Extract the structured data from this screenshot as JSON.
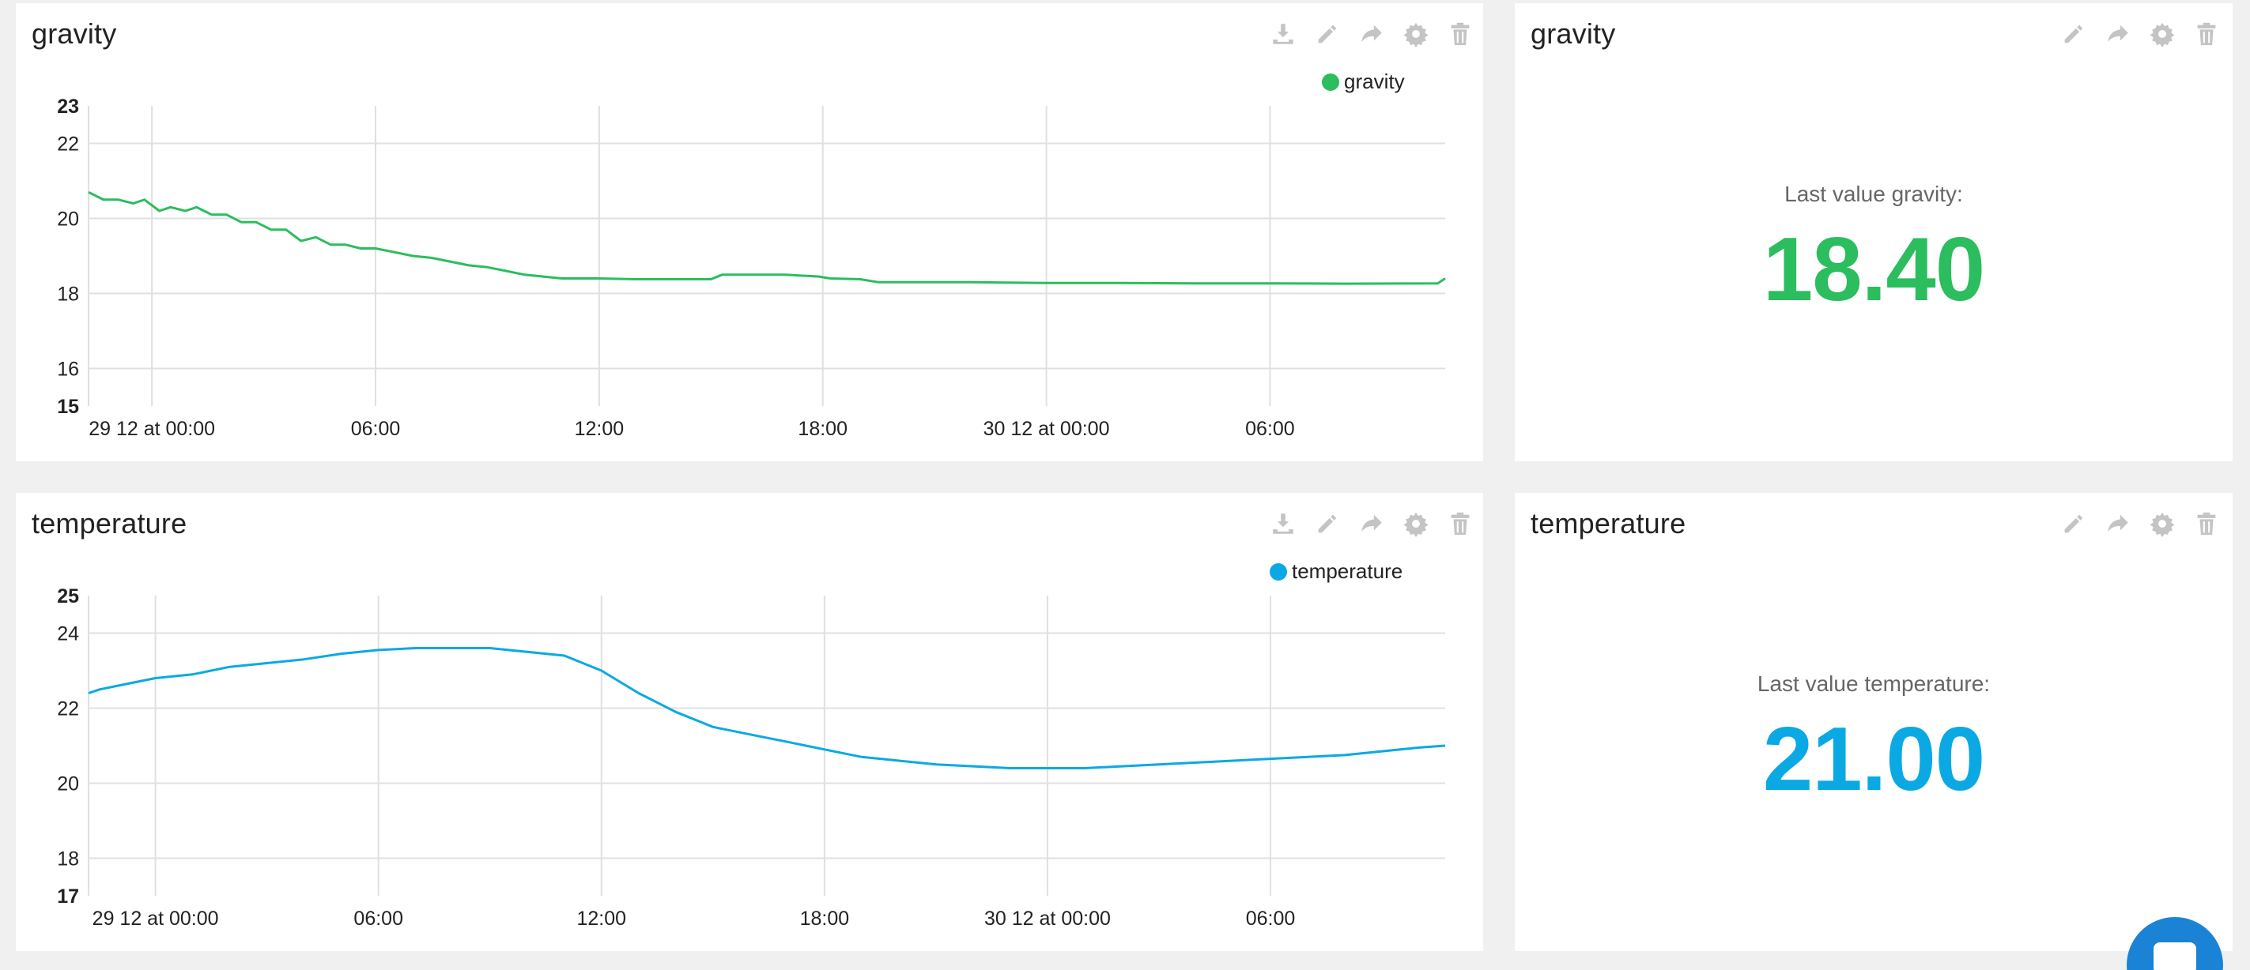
{
  "colors": {
    "gravity": "#2bbd5e",
    "temperature": "#0aa9e3",
    "grid": "#e0e0e0",
    "icon": "#c4c4c4"
  },
  "widgets": {
    "gravity_chart": {
      "title": "gravity",
      "toolbar": [
        "download-icon",
        "pencil-icon",
        "share-icon",
        "gear-icon",
        "trash-icon"
      ],
      "legend_label": "gravity"
    },
    "gravity_value": {
      "title": "gravity",
      "toolbar": [
        "pencil-icon",
        "share-icon",
        "gear-icon",
        "trash-icon"
      ],
      "label": "Last value gravity:",
      "value": "18.40"
    },
    "temperature_chart": {
      "title": "temperature",
      "toolbar": [
        "download-icon",
        "pencil-icon",
        "share-icon",
        "gear-icon",
        "trash-icon"
      ],
      "legend_label": "temperature"
    },
    "temperature_value": {
      "title": "temperature",
      "toolbar": [
        "pencil-icon",
        "share-icon",
        "gear-icon",
        "trash-icon"
      ],
      "label": "Last value temperature:",
      "value": "21.00"
    }
  },
  "chart_data": [
    {
      "type": "line",
      "title": "gravity",
      "xlabel": "",
      "ylabel": "",
      "x_unit": "hours since 29 12 at 00:00",
      "xlim": [
        -1.7,
        34.7
      ],
      "ylim": [
        15,
        23
      ],
      "y_ticks": [
        15,
        16,
        18,
        20,
        22,
        23
      ],
      "x_ticks": [
        {
          "at": 0,
          "label": "29 12 at 00:00"
        },
        {
          "at": 6,
          "label": "06:00"
        },
        {
          "at": 12,
          "label": "12:00"
        },
        {
          "at": 18,
          "label": "18:00"
        },
        {
          "at": 24,
          "label": "30 12 at 00:00"
        },
        {
          "at": 30,
          "label": "06:00"
        }
      ],
      "grid": true,
      "legend": "top-right",
      "series": [
        {
          "name": "gravity",
          "x": [
            -1.7,
            -1.3,
            -0.9,
            -0.5,
            -0.2,
            0.2,
            0.5,
            0.9,
            1.2,
            1.6,
            2.0,
            2.4,
            2.8,
            3.2,
            3.6,
            4.0,
            4.4,
            4.8,
            5.2,
            5.6,
            6.0,
            6.5,
            7.0,
            7.5,
            8.0,
            8.5,
            9.0,
            9.5,
            10.0,
            10.5,
            11.0,
            11.5,
            12.0,
            13.0,
            14.0,
            15.0,
            15.3,
            16.0,
            17.0,
            17.9,
            18.2,
            19.0,
            19.5,
            20.5,
            22.0,
            24.0,
            26.0,
            28.0,
            30.0,
            32.0,
            34.5,
            34.7
          ],
          "y": [
            20.7,
            20.5,
            20.5,
            20.4,
            20.5,
            20.2,
            20.3,
            20.2,
            20.3,
            20.1,
            20.1,
            19.9,
            19.9,
            19.7,
            19.7,
            19.4,
            19.5,
            19.3,
            19.3,
            19.2,
            19.2,
            19.1,
            19.0,
            18.95,
            18.85,
            18.75,
            18.7,
            18.6,
            18.5,
            18.45,
            18.4,
            18.4,
            18.4,
            18.38,
            18.38,
            18.38,
            18.5,
            18.5,
            18.5,
            18.45,
            18.4,
            18.38,
            18.3,
            18.3,
            18.3,
            18.28,
            18.28,
            18.27,
            18.27,
            18.26,
            18.27,
            18.4
          ]
        }
      ]
    },
    {
      "type": "line",
      "title": "temperature",
      "xlabel": "",
      "ylabel": "",
      "x_unit": "hours since 29 12 at 00:00",
      "xlim": [
        -1.8,
        34.7
      ],
      "ylim": [
        17,
        25
      ],
      "y_ticks": [
        17,
        18,
        20,
        22,
        24,
        25
      ],
      "x_ticks": [
        {
          "at": 0,
          "label": "29 12 at 00:00"
        },
        {
          "at": 6,
          "label": "06:00"
        },
        {
          "at": 12,
          "label": "12:00"
        },
        {
          "at": 18,
          "label": "18:00"
        },
        {
          "at": 24,
          "label": "30 12 at 00:00"
        },
        {
          "at": 30,
          "label": "06:00"
        }
      ],
      "grid": true,
      "legend": "top-right",
      "series": [
        {
          "name": "temperature",
          "x": [
            -1.8,
            -1.5,
            -1.0,
            0.0,
            1.0,
            2.0,
            3.0,
            4.0,
            5.0,
            6.0,
            7.0,
            8.0,
            9.0,
            10.0,
            11.0,
            11.5,
            12.0,
            13.0,
            14.0,
            15.0,
            16.0,
            17.0,
            18.0,
            19.0,
            20.0,
            21.0,
            22.0,
            23.0,
            24.0,
            25.0,
            26.0,
            27.0,
            28.0,
            29.0,
            30.0,
            31.0,
            32.0,
            33.0,
            34.0,
            34.7
          ],
          "y": [
            22.4,
            22.5,
            22.6,
            22.8,
            22.9,
            23.1,
            23.2,
            23.3,
            23.45,
            23.55,
            23.6,
            23.6,
            23.6,
            23.5,
            23.4,
            23.2,
            23.0,
            22.4,
            21.9,
            21.5,
            21.3,
            21.1,
            20.9,
            20.7,
            20.6,
            20.5,
            20.45,
            20.4,
            20.4,
            20.4,
            20.45,
            20.5,
            20.55,
            20.6,
            20.65,
            20.7,
            20.75,
            20.85,
            20.95,
            21.0
          ]
        }
      ]
    }
  ]
}
